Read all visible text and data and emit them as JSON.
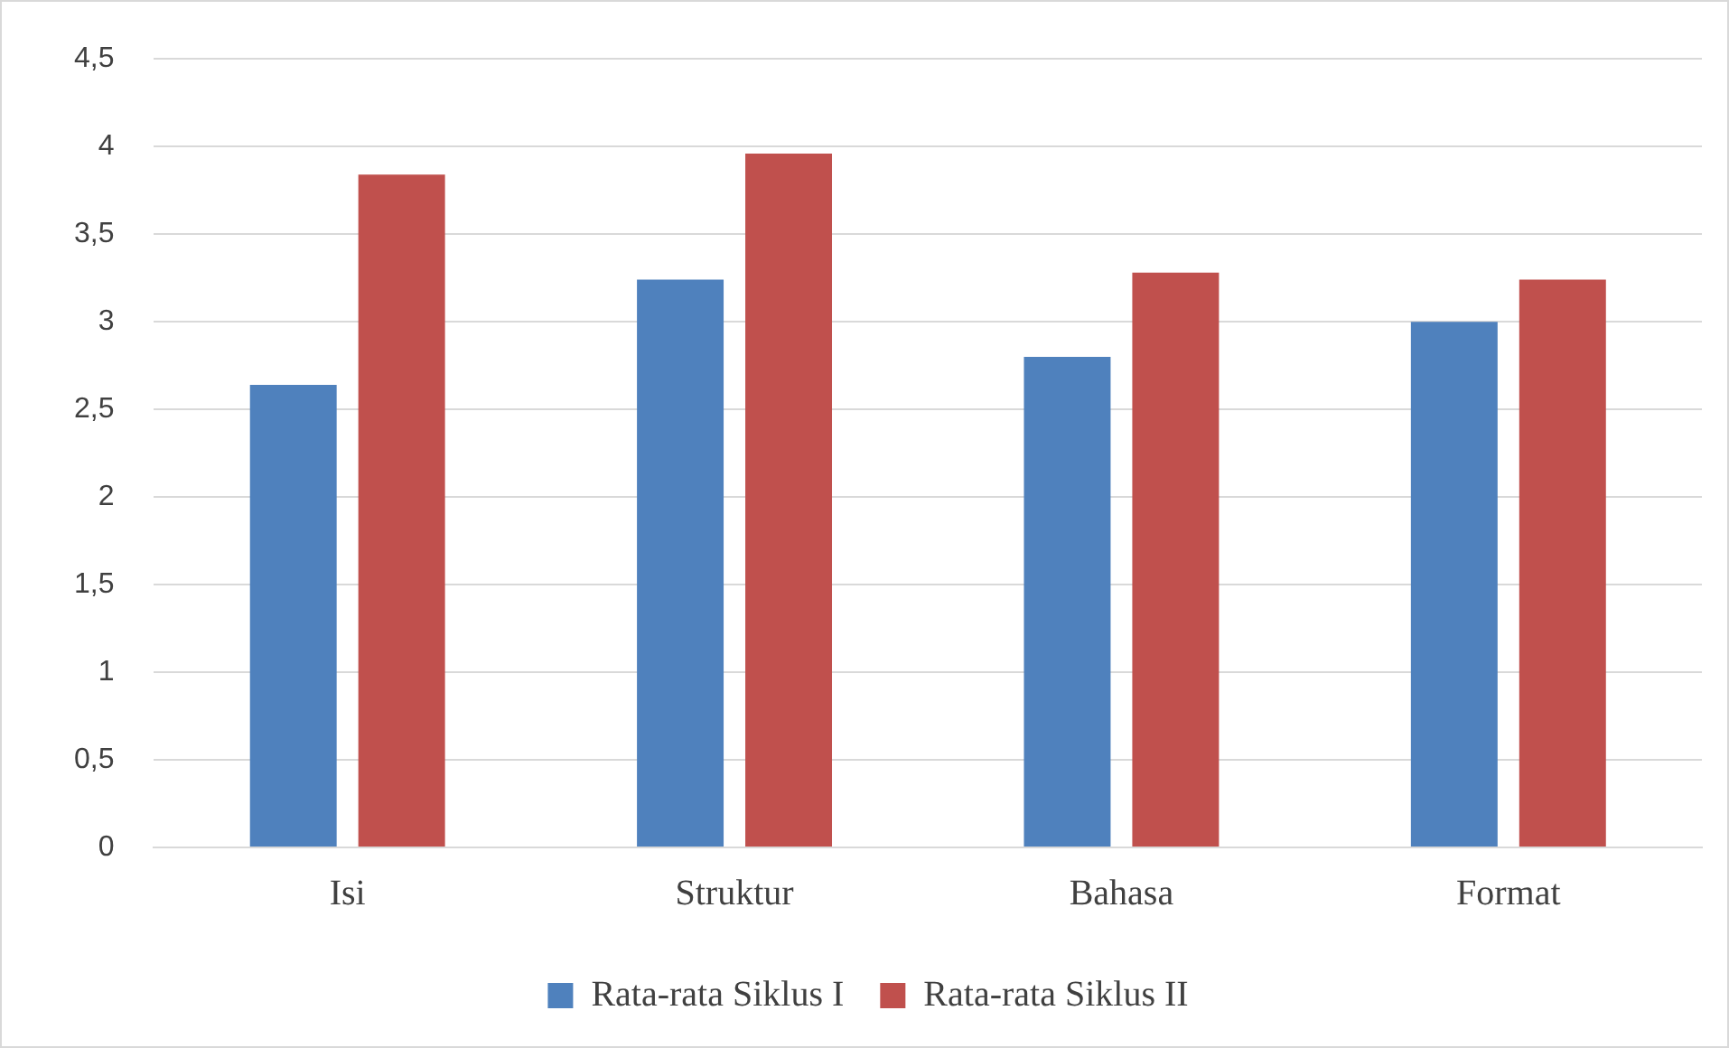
{
  "chart_data": {
    "type": "bar",
    "categories": [
      "Isi",
      "Struktur",
      "Bahasa",
      "Format"
    ],
    "series": [
      {
        "name": "Rata-rata Siklus I",
        "color": "#4f81bd",
        "values": [
          2.64,
          3.24,
          2.8,
          3.0
        ]
      },
      {
        "name": "Rata-rata Siklus II",
        "color": "#c0504d",
        "values": [
          3.84,
          3.96,
          3.28,
          3.24
        ]
      }
    ],
    "ylim": [
      0,
      4.5
    ],
    "yticks": [
      0,
      {
        "value": 0.5,
        "label": "0,5"
      },
      1,
      {
        "value": 1.5,
        "label": "1,5"
      },
      2,
      {
        "value": 2.5,
        "label": "2,5"
      },
      3,
      {
        "value": 3.5,
        "label": "3,5"
      },
      4,
      {
        "value": 4.5,
        "label": "4,5"
      }
    ],
    "grid": "y",
    "legend": "bottom"
  }
}
